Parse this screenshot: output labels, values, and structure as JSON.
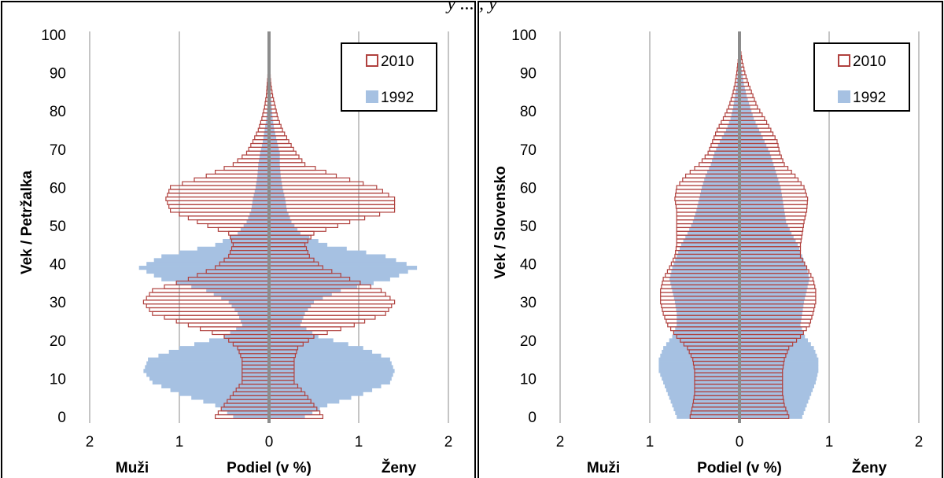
{
  "top_caption": "y ... , y",
  "colors": {
    "series_2010": "#b0413e",
    "series_1992": "#a6c1e2",
    "center_line": "#8c8c8c",
    "grid": "#a6a6a6",
    "frame": "#000000"
  },
  "chart_data": [
    {
      "type": "bar",
      "orientation": "horizontal-population-pyramid",
      "ylabel": "Vek / Petržalka",
      "xlabel": "Podiel (v %)",
      "left_side_label": "Muži",
      "right_side_label": "Ženy",
      "xlim": [
        -2,
        2
      ],
      "ylim": [
        0,
        100
      ],
      "xticks": [
        "2",
        "1",
        "0",
        "1",
        "2"
      ],
      "yticks": [
        "0",
        "10",
        "20",
        "30",
        "40",
        "50",
        "60",
        "70",
        "80",
        "90",
        "100"
      ],
      "legend": {
        "position": "top-right",
        "entries": [
          "2010",
          "1992"
        ]
      },
      "grid": "vertical",
      "series": [
        {
          "name": "2010",
          "style": "outline",
          "age_points": [
            0,
            3,
            6,
            9,
            12,
            15,
            18,
            21,
            24,
            27,
            30,
            33,
            36,
            39,
            42,
            45,
            48,
            51,
            54,
            57,
            60,
            63,
            66,
            69,
            72,
            75,
            78,
            81,
            84,
            87,
            90,
            93,
            96,
            100
          ],
          "male": [
            0.6,
            0.5,
            0.4,
            0.3,
            0.3,
            0.3,
            0.35,
            0.5,
            0.9,
            1.3,
            1.4,
            1.3,
            0.9,
            0.6,
            0.45,
            0.4,
            0.45,
            0.8,
            1.1,
            1.15,
            1.1,
            0.7,
            0.4,
            0.25,
            0.18,
            0.12,
            0.08,
            0.05,
            0.03,
            0.02,
            0.01,
            0.005,
            0.002,
            0.001
          ],
          "female": [
            0.6,
            0.5,
            0.4,
            0.28,
            0.28,
            0.28,
            0.32,
            0.5,
            0.95,
            1.3,
            1.4,
            1.25,
            0.9,
            0.6,
            0.45,
            0.4,
            0.5,
            0.9,
            1.4,
            1.4,
            1.2,
            0.75,
            0.4,
            0.3,
            0.22,
            0.15,
            0.1,
            0.07,
            0.04,
            0.02,
            0.01,
            0.005,
            0.002,
            0.001
          ]
        },
        {
          "name": "1992",
          "style": "filled",
          "age_points": [
            0,
            3,
            6,
            9,
            12,
            15,
            18,
            21,
            24,
            27,
            30,
            33,
            36,
            39,
            42,
            45,
            48,
            51,
            54,
            57,
            60,
            63,
            66,
            69,
            72,
            75,
            78,
            81,
            84,
            87,
            90,
            93,
            96,
            100
          ],
          "male": [
            0.4,
            0.6,
            1.0,
            1.3,
            1.4,
            1.35,
            1.0,
            0.5,
            0.3,
            0.35,
            0.45,
            0.7,
            1.2,
            1.45,
            1.2,
            0.6,
            0.35,
            0.25,
            0.2,
            0.18,
            0.15,
            0.13,
            0.12,
            0.1,
            0.07,
            0.05,
            0.03,
            0.02,
            0.01,
            0.005,
            0.003,
            0.002,
            0.001,
            0.0005
          ],
          "female": [
            0.4,
            0.65,
            1.05,
            1.35,
            1.4,
            1.35,
            1.05,
            0.55,
            0.35,
            0.4,
            0.5,
            0.8,
            1.35,
            1.65,
            1.3,
            0.65,
            0.35,
            0.25,
            0.2,
            0.18,
            0.15,
            0.13,
            0.12,
            0.12,
            0.09,
            0.06,
            0.04,
            0.03,
            0.02,
            0.01,
            0.005,
            0.003,
            0.001,
            0.0005
          ]
        }
      ]
    },
    {
      "type": "bar",
      "orientation": "horizontal-population-pyramid",
      "ylabel": "Vek / Slovensko",
      "xlabel": "Podiel (v %)",
      "left_side_label": "Muži",
      "right_side_label": "Ženy",
      "xlim": [
        -2,
        2
      ],
      "ylim": [
        0,
        100
      ],
      "xticks": [
        "2",
        "1",
        "0",
        "1",
        "2"
      ],
      "yticks": [
        "0",
        "10",
        "20",
        "30",
        "40",
        "50",
        "60",
        "70",
        "80",
        "90",
        "100"
      ],
      "legend": {
        "position": "top-right",
        "entries": [
          "2010",
          "1992"
        ]
      },
      "grid": "vertical",
      "series": [
        {
          "name": "2010",
          "style": "outline",
          "age_points": [
            0,
            3,
            6,
            9,
            12,
            15,
            18,
            21,
            24,
            27,
            30,
            33,
            36,
            39,
            42,
            45,
            48,
            51,
            54,
            57,
            60,
            63,
            66,
            69,
            72,
            75,
            78,
            81,
            84,
            87,
            90,
            93,
            96,
            100
          ],
          "male": [
            0.55,
            0.52,
            0.5,
            0.5,
            0.5,
            0.52,
            0.58,
            0.7,
            0.8,
            0.85,
            0.88,
            0.88,
            0.85,
            0.78,
            0.72,
            0.7,
            0.7,
            0.7,
            0.7,
            0.72,
            0.7,
            0.6,
            0.45,
            0.35,
            0.3,
            0.25,
            0.18,
            0.12,
            0.08,
            0.05,
            0.03,
            0.015,
            0.005,
            0.002
          ],
          "female": [
            0.55,
            0.5,
            0.48,
            0.48,
            0.48,
            0.5,
            0.55,
            0.68,
            0.78,
            0.82,
            0.85,
            0.85,
            0.82,
            0.75,
            0.68,
            0.68,
            0.7,
            0.72,
            0.75,
            0.76,
            0.72,
            0.62,
            0.5,
            0.45,
            0.42,
            0.35,
            0.28,
            0.2,
            0.15,
            0.1,
            0.06,
            0.03,
            0.01,
            0.003
          ]
        },
        {
          "name": "1992",
          "style": "filled",
          "age_points": [
            0,
            3,
            6,
            9,
            12,
            15,
            18,
            21,
            24,
            27,
            30,
            33,
            36,
            39,
            42,
            45,
            48,
            51,
            54,
            57,
            60,
            63,
            66,
            69,
            72,
            75,
            78,
            81,
            84,
            87,
            90,
            93,
            96,
            100
          ],
          "male": [
            0.7,
            0.75,
            0.8,
            0.85,
            0.9,
            0.9,
            0.85,
            0.75,
            0.7,
            0.7,
            0.72,
            0.75,
            0.78,
            0.75,
            0.7,
            0.65,
            0.58,
            0.52,
            0.48,
            0.45,
            0.42,
            0.38,
            0.32,
            0.28,
            0.22,
            0.15,
            0.1,
            0.07,
            0.05,
            0.03,
            0.02,
            0.01,
            0.005,
            0.002
          ],
          "female": [
            0.7,
            0.75,
            0.8,
            0.85,
            0.88,
            0.88,
            0.83,
            0.73,
            0.68,
            0.7,
            0.72,
            0.75,
            0.78,
            0.75,
            0.7,
            0.65,
            0.58,
            0.52,
            0.5,
            0.48,
            0.46,
            0.42,
            0.38,
            0.34,
            0.28,
            0.22,
            0.16,
            0.12,
            0.08,
            0.05,
            0.03,
            0.015,
            0.005,
            0.002
          ]
        }
      ]
    }
  ]
}
